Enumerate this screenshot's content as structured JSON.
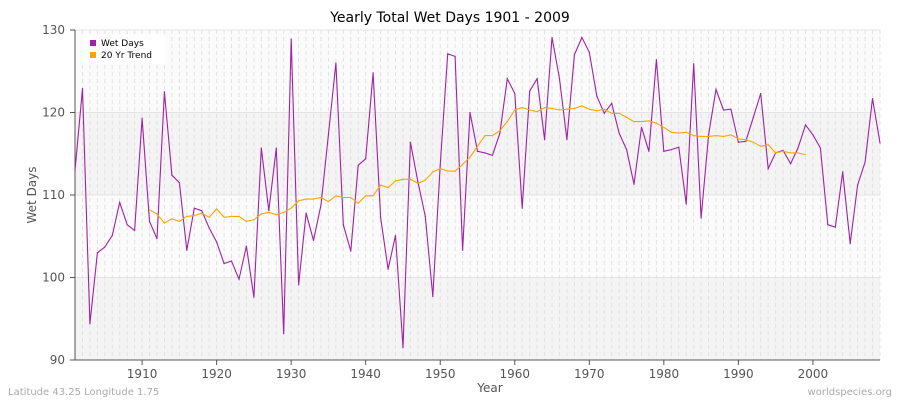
{
  "chart_data": {
    "type": "line",
    "title": "Yearly Total Wet Days 1901 - 2009",
    "xlabel": "Year",
    "ylabel": "Wet Days",
    "xlim": [
      1901,
      2009
    ],
    "ylim": [
      90,
      130
    ],
    "x_ticks": [
      1910,
      1920,
      1930,
      1940,
      1950,
      1960,
      1970,
      1980,
      1990,
      2000
    ],
    "y_ticks": [
      90,
      100,
      110,
      120,
      130
    ],
    "grid": true,
    "legend_position": "top-left",
    "series": [
      {
        "name": "Wet Days",
        "color": "#a020a8",
        "x_start": 1901,
        "values": [
          113.0,
          122.9,
          94.4,
          103.0,
          103.7,
          105.1,
          109.1,
          106.4,
          105.7,
          119.3,
          106.8,
          104.7,
          122.5,
          112.4,
          111.5,
          103.3,
          108.4,
          108.1,
          106.0,
          104.3,
          101.7,
          102.0,
          99.8,
          103.8,
          97.6,
          115.7,
          108.1,
          115.7,
          93.2,
          128.9,
          99.1,
          107.8,
          104.5,
          108.8,
          117.3,
          126.0,
          106.4,
          103.2,
          113.6,
          114.4,
          124.8,
          107.3,
          101.0,
          105.1,
          91.5,
          116.4,
          111.6,
          107.4,
          97.7,
          113.6,
          127.1,
          126.8,
          103.3,
          120.0,
          115.3,
          115.1,
          114.8,
          117.5,
          124.1,
          122.3,
          108.4,
          122.6,
          124.1,
          116.7,
          129.1,
          124.1,
          116.7,
          127.0,
          129.1,
          127.3,
          122.0,
          119.9,
          121.1,
          117.5,
          115.5,
          111.3,
          118.2,
          115.3,
          126.4,
          115.3,
          115.5,
          115.8,
          108.9,
          125.9,
          107.2,
          117.3,
          122.8,
          120.3,
          120.4,
          116.4,
          116.5,
          119.4,
          122.3,
          113.2,
          115.1,
          115.4,
          113.8,
          115.7,
          118.5,
          117.3,
          115.7,
          106.4,
          106.1,
          112.8,
          104.1,
          111.2,
          114.0,
          121.7,
          116.3
        ]
      },
      {
        "name": "20 Yr Trend",
        "color": "#ffa500",
        "x_start": 1911,
        "values": [
          108.2,
          107.7,
          106.6,
          107.1,
          106.8,
          107.4,
          107.5,
          107.8,
          107.3,
          108.3,
          107.3,
          107.4,
          107.4,
          106.8,
          107.0,
          107.7,
          107.9,
          107.6,
          107.9,
          108.4,
          109.3,
          109.5,
          109.5,
          109.7,
          109.2,
          109.9,
          109.7,
          109.7,
          109.0,
          109.9,
          109.9,
          111.2,
          110.9,
          111.7,
          111.9,
          111.9,
          111.4,
          111.8,
          112.8,
          113.2,
          112.9,
          112.9,
          113.7,
          114.6,
          115.9,
          117.2,
          117.2,
          117.8,
          118.9,
          120.3,
          120.6,
          120.3,
          120.1,
          120.6,
          120.5,
          120.3,
          120.4,
          120.5,
          120.8,
          120.4,
          120.2,
          120.4,
          119.9,
          119.9,
          119.4,
          118.9,
          118.9,
          119.0,
          118.7,
          118.2,
          117.6,
          117.5,
          117.6,
          117.2,
          117.1,
          117.1,
          117.2,
          117.1,
          117.3,
          116.8,
          116.7,
          116.4,
          115.9,
          116.1,
          115.1,
          115.3,
          115.1,
          115.1,
          114.9
        ]
      }
    ]
  },
  "footer": {
    "location": "Latitude 43.25 Longitude 1.75",
    "source": "worldspecies.org"
  }
}
